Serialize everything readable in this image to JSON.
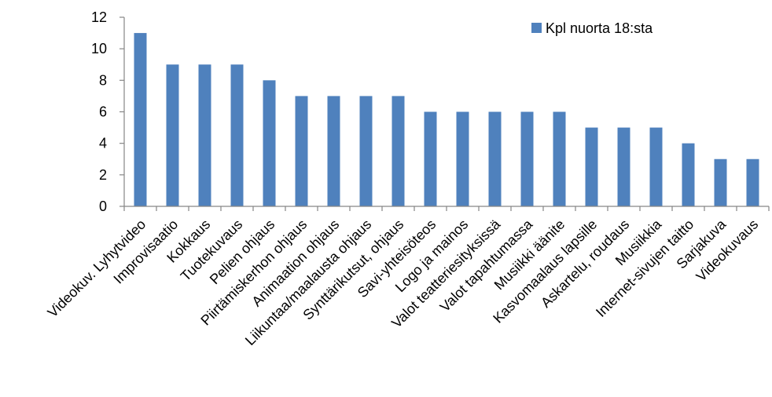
{
  "chart_data": {
    "type": "bar",
    "title": "",
    "xlabel": "",
    "ylabel": "",
    "ylim": [
      0,
      12
    ],
    "yticks": [
      0,
      2,
      4,
      6,
      8,
      10,
      12
    ],
    "grid": false,
    "legend_position": "top-right",
    "colors": {
      "bar": "#4f81bd",
      "axis": "#868686"
    },
    "categories": [
      "Videokuv. Lyhytvideo",
      "Improvisaatio",
      "Kokkaus",
      "Tuotekuvaus",
      "Pelien ohjaus",
      "Piirtämiskerhon ohjaus",
      "Animaation ohjaus",
      "Liikuntaa/maalausta ohjaus",
      "Synttärikutsut, ohjaus",
      "Savi-yhteisöteos",
      "Logo ja mainos",
      "Valot teatteriesityksissä",
      "Valot tapahtumassa",
      "Musiikki äänite",
      "Kasvomaalaus lapsille",
      "Askartelu, roudaus",
      "Musiikkia",
      "Internet-sivujen taitto",
      "Sarjakuva",
      "Videokuvaus"
    ],
    "series": [
      {
        "name": "Kpl nuorta 18:sta",
        "values": [
          11,
          9,
          9,
          9,
          8,
          7,
          7,
          7,
          7,
          6,
          6,
          6,
          6,
          6,
          5,
          5,
          5,
          4,
          3,
          3
        ]
      }
    ]
  }
}
